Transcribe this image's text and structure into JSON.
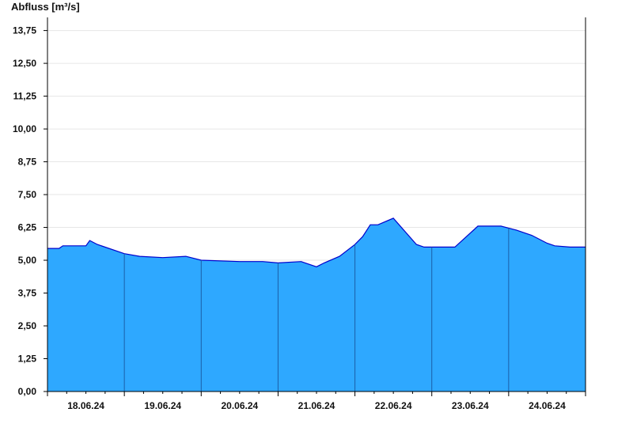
{
  "chart_data": {
    "type": "area",
    "title": "",
    "ylabel": "Abfluss [m³/s]",
    "xlabel": "",
    "ylim": [
      0,
      14.25
    ],
    "yticks": [
      "0,00",
      "1,25",
      "2,50",
      "3,75",
      "5,00",
      "6,25",
      "7,50",
      "8,75",
      "10,00",
      "11,25",
      "12,50",
      "13,75"
    ],
    "ytick_values": [
      0,
      1.25,
      2.5,
      3.75,
      5.0,
      6.25,
      7.5,
      8.75,
      10.0,
      11.25,
      12.5,
      13.75
    ],
    "xticks": [
      "18.06.24",
      "19.06.24",
      "20.06.24",
      "21.06.24",
      "22.06.24",
      "23.06.24",
      "24.06.24"
    ],
    "xlim_days": [
      0,
      7
    ],
    "grid": true,
    "fill_color": "#2ea8ff",
    "line_color": "#0000cc",
    "series": [
      {
        "x": [
          0,
          0.15,
          0.2,
          0.5,
          0.55,
          0.65,
          1.0,
          1.2,
          1.5,
          1.8,
          2.0,
          2.5,
          2.8,
          3.0,
          3.3,
          3.5,
          3.6,
          3.8,
          4.0,
          4.1,
          4.2,
          4.3,
          4.5,
          4.65,
          4.8,
          4.9,
          5.0,
          5.3,
          5.45,
          5.6,
          5.9,
          6.1,
          6.3,
          6.5,
          6.6,
          6.8,
          7.0
        ],
        "y": [
          5.45,
          5.45,
          5.55,
          5.55,
          5.75,
          5.6,
          5.25,
          5.15,
          5.1,
          5.15,
          5.0,
          4.95,
          4.95,
          4.9,
          4.95,
          4.75,
          4.9,
          5.15,
          5.6,
          5.9,
          6.35,
          6.35,
          6.6,
          6.1,
          5.6,
          5.5,
          5.5,
          5.5,
          5.9,
          6.3,
          6.3,
          6.15,
          5.95,
          5.65,
          5.55,
          5.5,
          5.5
        ]
      }
    ]
  }
}
